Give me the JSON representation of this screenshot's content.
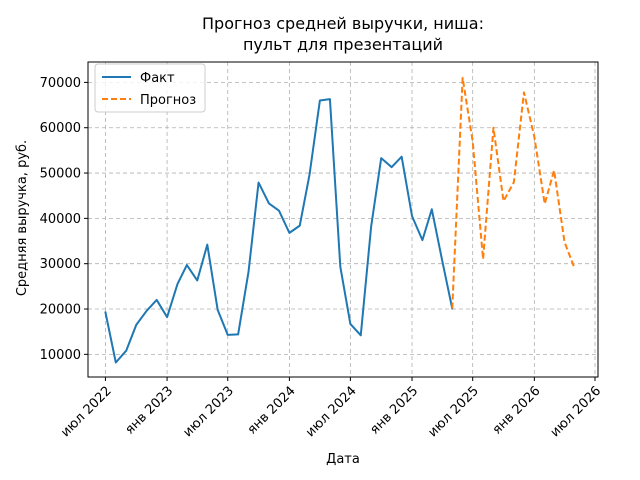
{
  "chart_data": {
    "type": "line",
    "title_lines": [
      "Прогноз средней выручки, ниша:",
      "пульт для презентаций"
    ],
    "xlabel": "Дата",
    "ylabel": "Средняя выручка, руб.",
    "x_ticks": [
      {
        "date": "2022-07-01",
        "label": "июл 2022"
      },
      {
        "date": "2023-01-01",
        "label": "янв 2023"
      },
      {
        "date": "2023-07-01",
        "label": "июл 2023"
      },
      {
        "date": "2024-01-01",
        "label": "янв 2024"
      },
      {
        "date": "2024-07-01",
        "label": "июл 2024"
      },
      {
        "date": "2025-01-01",
        "label": "янв 2025"
      },
      {
        "date": "2025-07-01",
        "label": "июл 2025"
      },
      {
        "date": "2026-01-01",
        "label": "янв 2026"
      },
      {
        "date": "2026-07-01",
        "label": "июл 2026"
      }
    ],
    "xlim": [
      "2022-05-10",
      "2026-07-10"
    ],
    "y_ticks": [
      {
        "value": 10000,
        "label": "10000"
      },
      {
        "value": 20000,
        "label": "20000"
      },
      {
        "value": 30000,
        "label": "30000"
      },
      {
        "value": 40000,
        "label": "40000"
      },
      {
        "value": 50000,
        "label": "50000"
      },
      {
        "value": 60000,
        "label": "60000"
      },
      {
        "value": 70000,
        "label": "70000"
      }
    ],
    "ylim": [
      5000,
      74500
    ],
    "grid": true,
    "legend_position": "top-left",
    "series": [
      {
        "name": "Факт",
        "color": "#1f77b4",
        "style": "solid",
        "points": [
          {
            "x": "2022-07-01",
            "y": 19300
          },
          {
            "x": "2022-08-01",
            "y": 8200
          },
          {
            "x": "2022-09-01",
            "y": 10800
          },
          {
            "x": "2022-10-01",
            "y": 16500
          },
          {
            "x": "2022-11-01",
            "y": 19600
          },
          {
            "x": "2022-12-01",
            "y": 22000
          },
          {
            "x": "2023-01-01",
            "y": 18200
          },
          {
            "x": "2023-02-01",
            "y": 25500
          },
          {
            "x": "2023-03-01",
            "y": 29700
          },
          {
            "x": "2023-04-01",
            "y": 26300
          },
          {
            "x": "2023-05-01",
            "y": 34200
          },
          {
            "x": "2023-06-01",
            "y": 19800
          },
          {
            "x": "2023-07-01",
            "y": 14300
          },
          {
            "x": "2023-08-01",
            "y": 14400
          },
          {
            "x": "2023-09-01",
            "y": 28200
          },
          {
            "x": "2023-10-01",
            "y": 47900
          },
          {
            "x": "2023-11-01",
            "y": 43300
          },
          {
            "x": "2023-12-01",
            "y": 41700
          },
          {
            "x": "2024-01-01",
            "y": 36800
          },
          {
            "x": "2024-02-01",
            "y": 38400
          },
          {
            "x": "2024-03-01",
            "y": 49600
          },
          {
            "x": "2024-04-01",
            "y": 66000
          },
          {
            "x": "2024-05-01",
            "y": 66300
          },
          {
            "x": "2024-06-01",
            "y": 29300
          },
          {
            "x": "2024-07-01",
            "y": 16700
          },
          {
            "x": "2024-08-01",
            "y": 14200
          },
          {
            "x": "2024-09-01",
            "y": 38200
          },
          {
            "x": "2024-10-01",
            "y": 53300
          },
          {
            "x": "2024-11-01",
            "y": 51300
          },
          {
            "x": "2024-12-01",
            "y": 53600
          },
          {
            "x": "2025-01-01",
            "y": 40500
          },
          {
            "x": "2025-02-01",
            "y": 35200
          },
          {
            "x": "2025-03-01",
            "y": 42000
          },
          {
            "x": "2025-04-01",
            "y": 30700
          },
          {
            "x": "2025-05-01",
            "y": 20100
          }
        ]
      },
      {
        "name": "Прогноз",
        "color": "#ff7f0e",
        "style": "dashed",
        "points": [
          {
            "x": "2025-05-01",
            "y": 20100
          },
          {
            "x": "2025-06-01",
            "y": 71000
          },
          {
            "x": "2025-07-01",
            "y": 57000
          },
          {
            "x": "2025-08-01",
            "y": 31000
          },
          {
            "x": "2025-09-01",
            "y": 60000
          },
          {
            "x": "2025-10-01",
            "y": 43800
          },
          {
            "x": "2025-11-01",
            "y": 48000
          },
          {
            "x": "2025-12-01",
            "y": 67800
          },
          {
            "x": "2026-01-01",
            "y": 58000
          },
          {
            "x": "2026-02-01",
            "y": 43200
          },
          {
            "x": "2026-03-01",
            "y": 50600
          },
          {
            "x": "2026-04-01",
            "y": 34800
          },
          {
            "x": "2026-05-01",
            "y": 29000
          }
        ]
      }
    ]
  }
}
